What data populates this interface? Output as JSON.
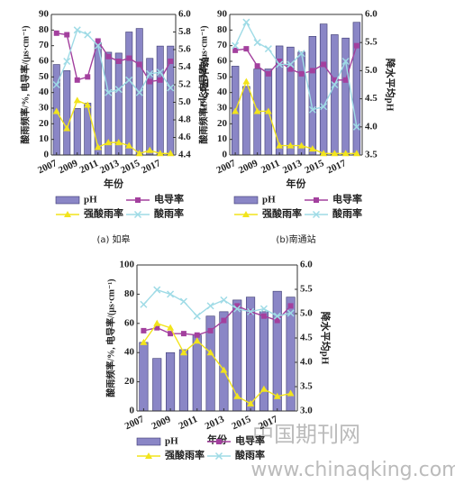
{
  "chart_data": [
    {
      "type": "bar",
      "caption": "(a) 如皋",
      "xlabel": "年份",
      "ylabel": "酸雨频率/%, 电导率/(μs·cm⁻¹)",
      "y2label": "降水平均pH",
      "x": [
        2007,
        2008,
        2009,
        2010,
        2011,
        2012,
        2013,
        2014,
        2015,
        2016,
        2017,
        2018
      ],
      "xlim": [
        2006.5,
        2018.5
      ],
      "xticks": [
        2007,
        2009,
        2011,
        2013,
        2015,
        2017
      ],
      "ylim": [
        0,
        90
      ],
      "yticks": [
        0,
        10,
        20,
        30,
        40,
        50,
        60,
        70,
        80,
        90
      ],
      "y2lim": [
        4.4,
        6
      ],
      "y2ticks": [
        4.4,
        4.6,
        4.8,
        {
          "value": 5,
          "label": "5.0"
        },
        5.2,
        5.4,
        5.6,
        5.8,
        {
          "value": 6,
          "label": "6.0"
        }
      ],
      "series": [
        {
          "name": "pH",
          "type": "bar",
          "axis": "y2",
          "color": "#8a86c6",
          "values": [
            5.43,
            5.36,
            4.93,
            4.99,
            5.68,
            5.57,
            5.56,
            5.8,
            5.84,
            5.5,
            5.64,
            5.64
          ]
        },
        {
          "name": "电导率",
          "type": "line",
          "marker": "square",
          "color": "#a3409e",
          "values": [
            78,
            77,
            48,
            50,
            73,
            63,
            60,
            62,
            58,
            47,
            48,
            60
          ]
        },
        {
          "name": "强酸雨率",
          "type": "line",
          "marker": "triangle",
          "color": "#f2e41c",
          "values": [
            28,
            17,
            35,
            32,
            5,
            8,
            8,
            6,
            1,
            3,
            1,
            1
          ]
        },
        {
          "name": "酸雨率",
          "type": "line",
          "marker": "x",
          "color": "#9fdbe6",
          "values": [
            45,
            60,
            80,
            77,
            70,
            40,
            42,
            48,
            40,
            52,
            53,
            43
          ]
        }
      ]
    },
    {
      "type": "bar",
      "caption": "(b)南通站",
      "xlabel": "年份",
      "ylabel": "酸雨频率/%, 电导率/(μs·cm⁻¹)",
      "y2label": "降水平均pH",
      "x": [
        2007,
        2008,
        2009,
        2010,
        2011,
        2012,
        2013,
        2014,
        2015,
        2016,
        2017,
        2018
      ],
      "xlim": [
        2006.5,
        2018.5
      ],
      "xticks": [
        2007,
        2009,
        2011,
        2013,
        2015,
        2017
      ],
      "ylim": [
        0,
        90
      ],
      "yticks": [
        0,
        10,
        20,
        30,
        40,
        50,
        60,
        70,
        80,
        90
      ],
      "y2lim": [
        3.5,
        6
      ],
      "y2ticks": [
        3.5,
        {
          "value": 4,
          "label": "4.0"
        },
        4.5,
        {
          "value": 5,
          "label": "5.0"
        },
        5.5,
        {
          "value": 6,
          "label": "6.0"
        }
      ],
      "series": [
        {
          "name": "pH",
          "type": "bar",
          "axis": "y2",
          "color": "#8a86c6",
          "values": [
            5.08,
            4.72,
            5.03,
            5.03,
            5.44,
            5.42,
            5.33,
            5.61,
            5.83,
            5.64,
            5.58,
            5.86
          ]
        },
        {
          "name": "电导率",
          "type": "line",
          "marker": "square",
          "color": "#a3409e",
          "values": [
            67,
            68,
            57,
            52,
            60,
            55,
            52,
            54,
            58,
            48,
            48,
            70
          ]
        },
        {
          "name": "强酸雨率",
          "type": "line",
          "marker": "triangle",
          "color": "#f2e41c",
          "values": [
            28,
            47,
            28,
            28,
            6,
            6,
            6,
            4,
            1,
            1,
            1,
            1
          ]
        },
        {
          "name": "酸雨率",
          "type": "line",
          "marker": "x",
          "color": "#9fdbe6",
          "values": [
            70,
            85,
            72,
            68,
            58,
            58,
            65,
            29,
            31,
            45,
            60,
            18
          ]
        }
      ]
    },
    {
      "type": "bar",
      "xlabel": "年份",
      "ylabel": "酸雨频率/%, 电导率/(μs·cm⁻¹)",
      "y2label": "降水平均pH",
      "x": [
        2007,
        2008,
        2009,
        2010,
        2011,
        2012,
        2013,
        2014,
        2015,
        2016,
        2017,
        2018
      ],
      "xlim": [
        2006.5,
        2018.5
      ],
      "xticks": [
        2007,
        2009,
        2011,
        2013,
        2015,
        2017
      ],
      "ylim": [
        0,
        100
      ],
      "yticks": [
        0,
        20,
        40,
        60,
        80,
        100
      ],
      "y2lim": [
        3,
        6
      ],
      "y2ticks": [
        {
          "value": 3,
          "label": "3.0"
        },
        3.5,
        {
          "value": 4,
          "label": "4.0"
        },
        4.5,
        {
          "value": 5,
          "label": "5.0"
        },
        5.5,
        {
          "value": 6,
          "label": "6.0"
        }
      ],
      "series": [
        {
          "name": "pH",
          "type": "bar",
          "axis": "y2",
          "color": "#8a86c6",
          "values": [
            4.41,
            4.08,
            4.2,
            4.26,
            4.56,
            4.95,
            5.04,
            5.28,
            5.34,
            5.04,
            5.46,
            5.34
          ]
        },
        {
          "name": "电导率",
          "type": "line",
          "marker": "square",
          "color": "#a3409e",
          "values": [
            55,
            57,
            53,
            53,
            52,
            55,
            62,
            72,
            68,
            65,
            62,
            72
          ]
        },
        {
          "name": "强酸雨率",
          "type": "line",
          "marker": "triangle",
          "color": "#f2e41c",
          "values": [
            47,
            60,
            57,
            40,
            48,
            40,
            28,
            10,
            5,
            15,
            10,
            12
          ]
        },
        {
          "name": "酸雨率",
          "type": "line",
          "marker": "x",
          "color": "#9fdbe6",
          "values": [
            73,
            83,
            80,
            75,
            65,
            72,
            76,
            70,
            68,
            70,
            65,
            67
          ]
        }
      ]
    }
  ],
  "watermark": {
    "brand": "中国期刊网",
    "url": "www.chinaqking.com"
  }
}
